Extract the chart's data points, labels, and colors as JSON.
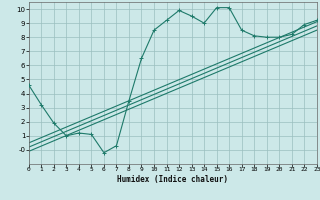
{
  "xlabel": "Humidex (Indice chaleur)",
  "bg_color": "#cce8e8",
  "line_color": "#1e7a6a",
  "grid_color": "#9bbfbf",
  "grid_minor_color": "#b8d8d8",
  "xlim": [
    0,
    23
  ],
  "ylim": [
    -1,
    10.5
  ],
  "xticks": [
    0,
    1,
    2,
    3,
    4,
    5,
    6,
    7,
    8,
    9,
    10,
    11,
    12,
    13,
    14,
    15,
    16,
    17,
    18,
    19,
    20,
    21,
    22,
    23
  ],
  "yticks": [
    0,
    1,
    2,
    3,
    4,
    5,
    6,
    7,
    8,
    9,
    10
  ],
  "series1_x": [
    0,
    1,
    2,
    3,
    4,
    5,
    6,
    7,
    8,
    9,
    10,
    11,
    12,
    13,
    14,
    15,
    16,
    17,
    18,
    19,
    20,
    21,
    22,
    23
  ],
  "series1_y": [
    4.6,
    3.2,
    1.9,
    1.0,
    1.2,
    1.1,
    -0.2,
    0.3,
    3.5,
    6.5,
    8.5,
    9.2,
    9.9,
    9.5,
    9.0,
    10.1,
    10.1,
    8.5,
    8.1,
    8.0,
    8.0,
    8.2,
    8.9,
    9.2
  ],
  "series2_x": [
    0,
    23
  ],
  "series2_y": [
    0.5,
    9.1
  ],
  "series3_x": [
    0,
    23
  ],
  "series3_y": [
    0.2,
    8.8
  ],
  "series4_x": [
    0,
    23
  ],
  "series4_y": [
    -0.1,
    8.5
  ]
}
